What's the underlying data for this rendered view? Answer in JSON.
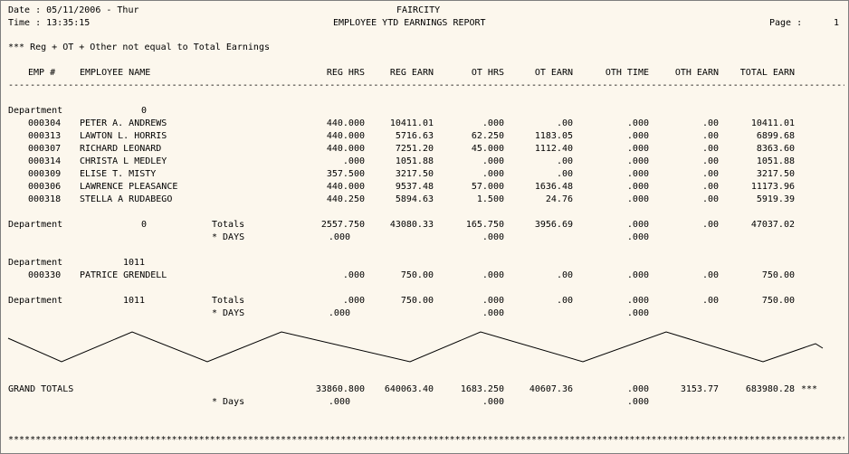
{
  "header": {
    "date": "Date : 05/11/2006 - Thur",
    "time": "Time : 13:35:15",
    "company": "FAIRCITY",
    "title": "EMPLOYEE YTD EARNINGS REPORT",
    "page_label": "Page :",
    "page_number": "1"
  },
  "note": "*** Reg + OT + Other not equal to Total Earnings",
  "columns": {
    "emp": "EMP #",
    "name": "EMPLOYEE NAME",
    "reg_hrs": "REG HRS",
    "reg_earn": "REG EARN",
    "ot_hrs": "OT HRS",
    "ot_earn": "OT EARN",
    "oth_time": "OTH TIME",
    "oth_earn": "OTH EARN",
    "total_earn": "TOTAL EARN"
  },
  "dashes": "----------------------------------------------------------------------------------------------------------------------------------------------------------------",
  "stars": "****************************************************************************************************************************************************************",
  "dept0": {
    "label": "Department",
    "number": "0",
    "rows": [
      {
        "emp": "000304",
        "name": "PETER A. ANDREWS",
        "reg_hrs": "440.000",
        "reg_earn": "10411.01",
        "ot_hrs": ".000",
        "ot_earn": ".00",
        "oth_time": ".000",
        "oth_earn": ".00",
        "total": "10411.01"
      },
      {
        "emp": "000313",
        "name": "LAWTON L. HORRIS",
        "reg_hrs": "440.000",
        "reg_earn": "5716.63",
        "ot_hrs": "62.250",
        "ot_earn": "1183.05",
        "oth_time": ".000",
        "oth_earn": ".00",
        "total": "6899.68"
      },
      {
        "emp": "000307",
        "name": "RICHARD LEONARD",
        "reg_hrs": "440.000",
        "reg_earn": "7251.20",
        "ot_hrs": "45.000",
        "ot_earn": "1112.40",
        "oth_time": ".000",
        "oth_earn": ".00",
        "total": "8363.60"
      },
      {
        "emp": "000314",
        "name": "CHRISTA L MEDLEY",
        "reg_hrs": ".000",
        "reg_earn": "1051.88",
        "ot_hrs": ".000",
        "ot_earn": ".00",
        "oth_time": ".000",
        "oth_earn": ".00",
        "total": "1051.88"
      },
      {
        "emp": "000309",
        "name": "ELISE T. MISTY",
        "reg_hrs": "357.500",
        "reg_earn": "3217.50",
        "ot_hrs": ".000",
        "ot_earn": ".00",
        "oth_time": ".000",
        "oth_earn": ".00",
        "total": "3217.50"
      },
      {
        "emp": "000306",
        "name": "LAWRENCE PLEASANCE",
        "reg_hrs": "440.000",
        "reg_earn": "9537.48",
        "ot_hrs": "57.000",
        "ot_earn": "1636.48",
        "oth_time": ".000",
        "oth_earn": ".00",
        "total": "11173.96"
      },
      {
        "emp": "000318",
        "name": "STELLA A RUDABEGO",
        "reg_hrs": "440.250",
        "reg_earn": "5894.63",
        "ot_hrs": "1.500",
        "ot_earn": "24.76",
        "oth_time": ".000",
        "oth_earn": ".00",
        "total": "5919.39"
      }
    ],
    "totals": {
      "label": "Totals",
      "reg_hrs": "2557.750",
      "reg_earn": "43080.33",
      "ot_hrs": "165.750",
      "ot_earn": "3956.69",
      "oth_time": ".000",
      "oth_earn": ".00",
      "total": "47037.02"
    },
    "days": {
      "label": "* DAYS",
      "reg_hrs": ".000",
      "ot_hrs": ".000",
      "oth_time": ".000"
    }
  },
  "dept1011": {
    "label": "Department",
    "number": "1011",
    "rows": [
      {
        "emp": "000330",
        "name": "PATRICE GRENDELL",
        "reg_hrs": ".000",
        "reg_earn": "750.00",
        "ot_hrs": ".000",
        "ot_earn": ".00",
        "oth_time": ".000",
        "oth_earn": ".00",
        "total": "750.00"
      }
    ],
    "totals": {
      "label": "Totals",
      "reg_hrs": ".000",
      "reg_earn": "750.00",
      "ot_hrs": ".000",
      "ot_earn": ".00",
      "oth_time": ".000",
      "oth_earn": ".00",
      "total": "750.00"
    },
    "days": {
      "label": "* DAYS",
      "reg_hrs": ".000",
      "ot_hrs": ".000",
      "oth_time": ".000"
    }
  },
  "grand": {
    "label": "GRAND TOTALS",
    "reg_hrs": "33860.800",
    "reg_earn": "640063.40",
    "ot_hrs": "1683.250",
    "ot_earn": "40607.36",
    "oth_time": ".000",
    "oth_earn": "3153.77",
    "total": "683980.28",
    "flag": "***",
    "days_label": "* Days",
    "days_reg_hrs": ".000",
    "days_ot_hrs": ".000",
    "days_oth_time": ".000"
  }
}
